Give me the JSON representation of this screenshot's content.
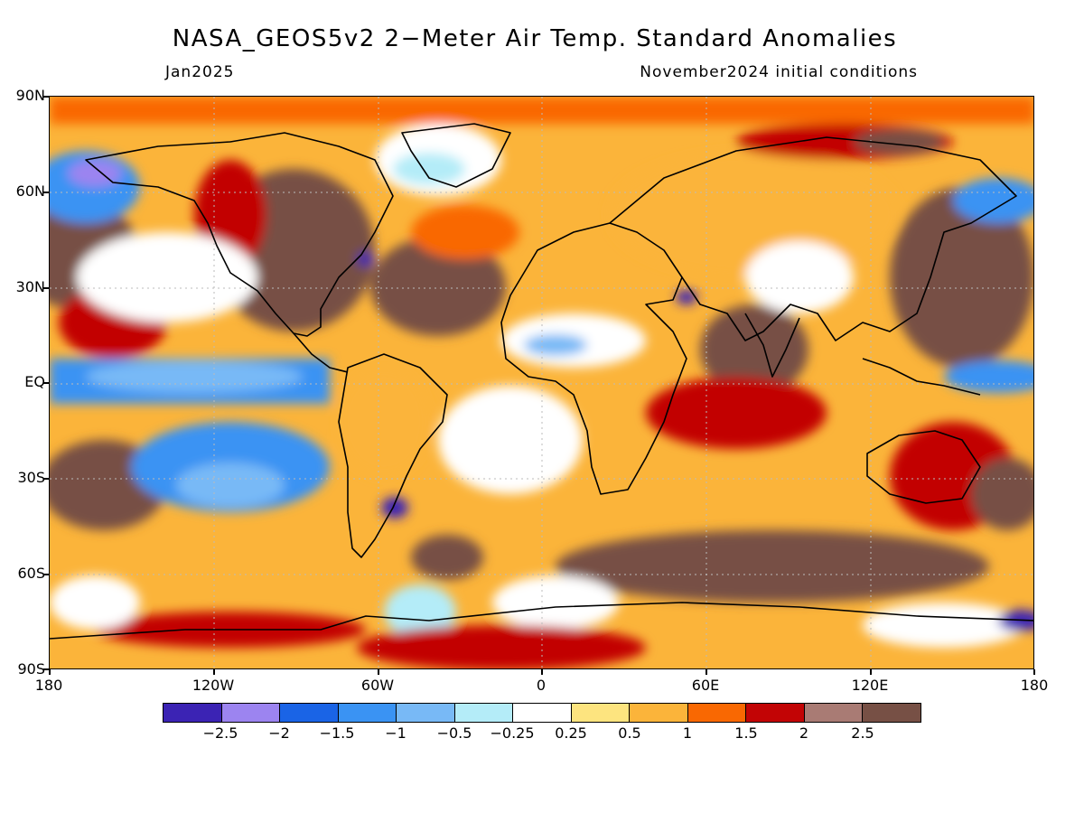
{
  "header": {
    "title": "NASA_GEOS5v2 2−Meter Air Temp. Standard Anomalies",
    "valid_month": "Jan2025",
    "init_conditions": "November2024 initial conditions"
  },
  "map": {
    "latitude_labels": [
      "90N",
      "60N",
      "30N",
      "EQ",
      "30S",
      "60S",
      "90S"
    ],
    "longitude_labels": [
      "180",
      "120W",
      "60W",
      "0",
      "60E",
      "120E",
      "180"
    ]
  },
  "colorbar": {
    "colors": [
      "#3b23b4",
      "#9c84f0",
      "#1a64e6",
      "#3a93f3",
      "#78b9f6",
      "#b4ecf8",
      "#ffffff",
      "#fde47f",
      "#fbb43a",
      "#f96802",
      "#c20405",
      "#a97b74",
      "#775045"
    ],
    "labels": [
      "−2.5",
      "−2",
      "−1.5",
      "−1",
      "−0.5",
      "−0.25",
      "0.25",
      "0.5",
      "1",
      "1.5",
      "2",
      "2.5"
    ]
  }
}
